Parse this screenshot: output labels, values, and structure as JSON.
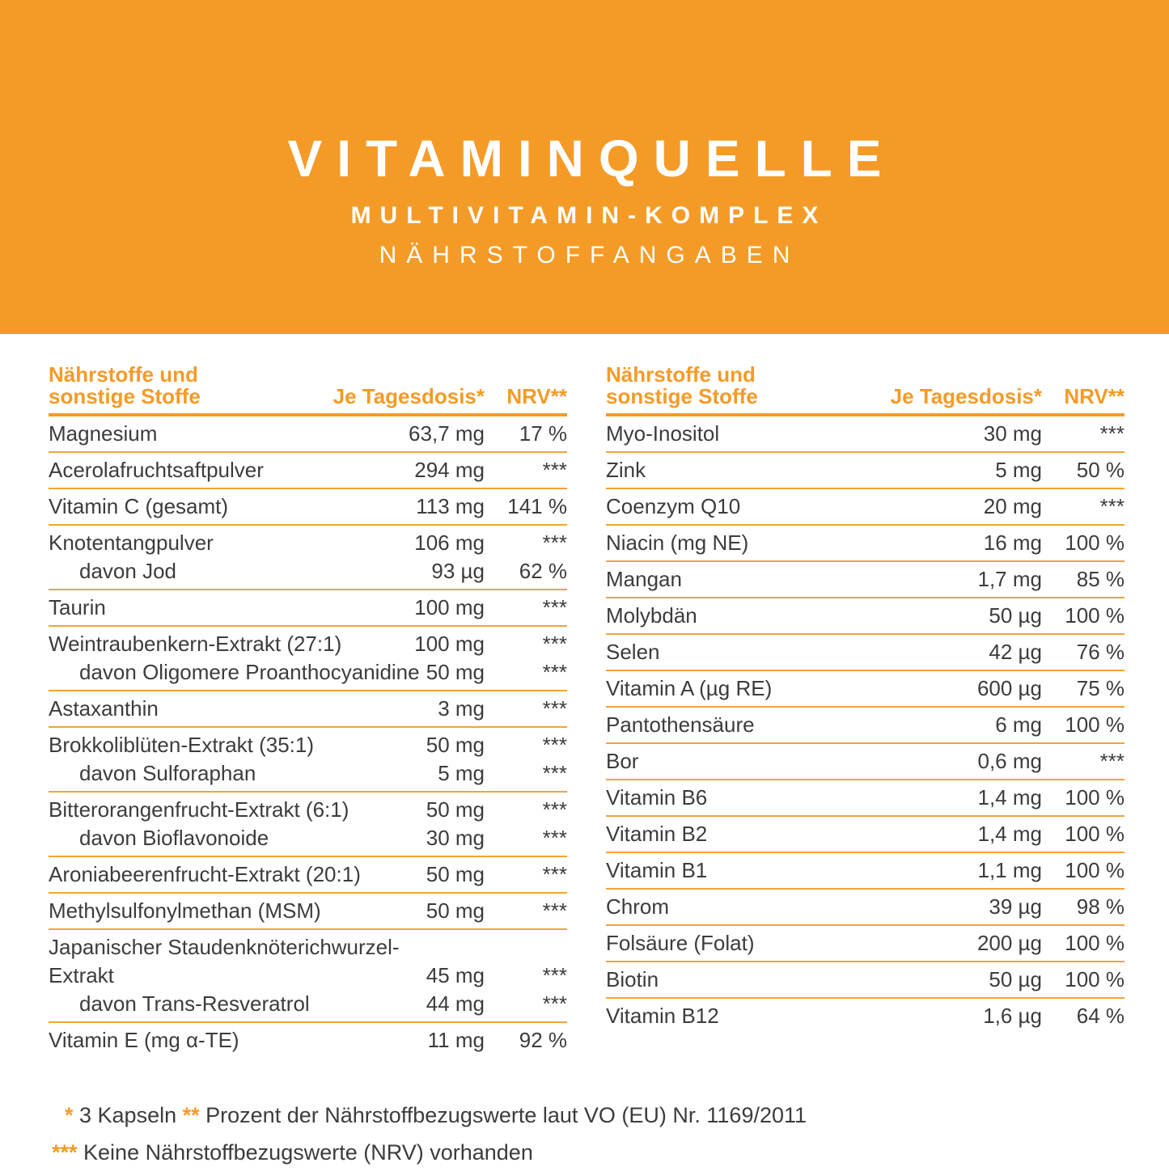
{
  "colors": {
    "accent": "#F49B27",
    "line": "#F3A23A",
    "text": "#3C3C3C",
    "background": "#FFFFFF"
  },
  "banner": {
    "title": "VITAMINQUELLE",
    "subtitle": "MULTIVITAMIN-KOMPLEX",
    "section": "NÄHRSTOFFANGABEN"
  },
  "table_header": {
    "name_line1": "Nährstoffe und",
    "name_line2": "sonstige Stoffe",
    "dose": "Je Tagesdosis*",
    "nrv": "NRV**"
  },
  "tables": {
    "left": {
      "rows": [
        [
          {
            "label": "Magnesium",
            "value": "63,7 mg",
            "nrv": "17 %"
          }
        ],
        [
          {
            "label": "Acerolafruchtsaftpulver",
            "value": "294 mg",
            "nrv": "***"
          }
        ],
        [
          {
            "label": "Vitamin C (gesamt)",
            "value": "113 mg",
            "nrv": "141 %"
          }
        ],
        [
          {
            "label": "Knotentangpulver",
            "value": "106 mg",
            "nrv": "***"
          },
          {
            "label": "davon Jod",
            "value": "93 µg",
            "nrv": "62 %",
            "sub": true
          }
        ],
        [
          {
            "label": "Taurin",
            "value": "100 mg",
            "nrv": "***"
          }
        ],
        [
          {
            "label": "Weintraubenkern-Extrakt (27:1)",
            "value": "100 mg",
            "nrv": "***"
          },
          {
            "label": "davon Oligomere Proanthocyanidine",
            "value": "50 mg",
            "nrv": "***",
            "sub": true
          }
        ],
        [
          {
            "label": "Astaxanthin",
            "value": "3 mg",
            "nrv": "***"
          }
        ],
        [
          {
            "label": "Brokkoliblüten-Extrakt (35:1)",
            "value": "50 mg",
            "nrv": "***"
          },
          {
            "label": "davon Sulforaphan",
            "value": "5 mg",
            "nrv": "***",
            "sub": true
          }
        ],
        [
          {
            "label": "Bitterorangenfrucht-Extrakt (6:1)",
            "value": "50 mg",
            "nrv": "***"
          },
          {
            "label": "davon Bioflavonoide",
            "value": "30 mg",
            "nrv": "***",
            "sub": true
          }
        ],
        [
          {
            "label": "Aroniabeerenfrucht-Extrakt (20:1)",
            "value": "50 mg",
            "nrv": "***"
          }
        ],
        [
          {
            "label": "Methylsulfonylmethan (MSM)",
            "value": "50 mg",
            "nrv": "***"
          }
        ],
        [
          {
            "label": "Japanischer Staudenknöterichwurzel-",
            "value": "",
            "nrv": ""
          },
          {
            "label": "Extrakt",
            "value": "45 mg",
            "nrv": "***"
          },
          {
            "label": "davon Trans-Resveratrol",
            "value": "44 mg",
            "nrv": "***",
            "sub": true
          }
        ],
        [
          {
            "label": "Vitamin E (mg α-TE)",
            "value": "11 mg",
            "nrv": "92 %"
          }
        ]
      ]
    },
    "right": {
      "rows": [
        [
          {
            "label": "Myo-Inositol",
            "value": "30 mg",
            "nrv": "***"
          }
        ],
        [
          {
            "label": "Zink",
            "value": "5 mg",
            "nrv": "50 %"
          }
        ],
        [
          {
            "label": "Coenzym Q10",
            "value": "20 mg",
            "nrv": "***"
          }
        ],
        [
          {
            "label": "Niacin (mg NE)",
            "value": "16 mg",
            "nrv": "100 %"
          }
        ],
        [
          {
            "label": "Mangan",
            "value": "1,7 mg",
            "nrv": "85 %"
          }
        ],
        [
          {
            "label": "Molybdän",
            "value": "50 µg",
            "nrv": "100 %"
          }
        ],
        [
          {
            "label": "Selen",
            "value": "42 µg",
            "nrv": "76 %"
          }
        ],
        [
          {
            "label": "Vitamin A (µg RE)",
            "value": "600 µg",
            "nrv": "75 %"
          }
        ],
        [
          {
            "label": "Pantothensäure",
            "value": "6 mg",
            "nrv": "100 %"
          }
        ],
        [
          {
            "label": "Bor",
            "value": "0,6 mg",
            "nrv": "***"
          }
        ],
        [
          {
            "label": "Vitamin B6",
            "value": "1,4 mg",
            "nrv": "100 %"
          }
        ],
        [
          {
            "label": "Vitamin B2",
            "value": "1,4 mg",
            "nrv": "100 %"
          }
        ],
        [
          {
            "label": "Vitamin B1",
            "value": "1,1 mg",
            "nrv": "100 %"
          }
        ],
        [
          {
            "label": "Chrom",
            "value": "39 µg",
            "nrv": "98 %"
          }
        ],
        [
          {
            "label": "Folsäure (Folat)",
            "value": "200 µg",
            "nrv": "100 %"
          }
        ],
        [
          {
            "label": "Biotin",
            "value": "50 µg",
            "nrv": "100 %"
          }
        ],
        [
          {
            "label": "Vitamin B12",
            "value": "1,6 µg",
            "nrv": "64 %"
          }
        ]
      ]
    }
  },
  "footnotes": [
    [
      {
        "text": "* ",
        "accent": true
      },
      {
        "text": "3 Kapseln ",
        "accent": false
      },
      {
        "text": "** ",
        "accent": true
      },
      {
        "text": "Prozent der Nährstoffbezugswerte laut VO (EU) Nr. 1169/2011",
        "accent": false
      }
    ],
    [
      {
        "text": "*** ",
        "accent": true
      },
      {
        "text": "Keine Nährstoffbezugswerte (NRV) vorhanden",
        "accent": false
      }
    ]
  ]
}
